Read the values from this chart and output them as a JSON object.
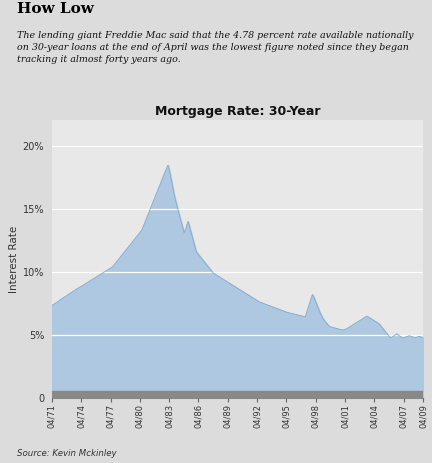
{
  "title": "Mortgage Rate: 30-Year",
  "header": "How Low",
  "subtitle": "The lending giant Freddie Mac said that the 4.78 percent rate available nationally\non 30-year loans at the end of April was the lowest figure noted since they began\ntracking it almost forty years ago.",
  "source": "Source: Kevin Mckinley",
  "ylabel": "Interest Rate",
  "ylim": [
    0,
    22
  ],
  "yticks": [
    0,
    5,
    10,
    15,
    20
  ],
  "ytick_labels": [
    "0",
    "5%",
    "10%",
    "15%",
    "20%"
  ],
  "background_color": "#dcdcdc",
  "chart_bg_color": "#e8e8e8",
  "fill_color": "#adc8e0",
  "fill_edge_color": "#88aac8",
  "gray_bar_color": "#888888",
  "xtick_labels": [
    "04/71",
    "04/74",
    "04/77",
    "04/80",
    "04/83",
    "04/86",
    "04/89",
    "04/92",
    "04/95",
    "04/98",
    "04/01",
    "04/04",
    "04/07",
    "04/09"
  ],
  "mortgage_data": [
    7.33,
    7.38,
    7.44,
    7.5,
    7.55,
    7.6,
    7.65,
    7.72,
    7.78,
    7.83,
    7.88,
    7.94,
    7.99,
    8.04,
    8.09,
    8.14,
    8.2,
    8.25,
    8.3,
    8.35,
    8.4,
    8.45,
    8.51,
    8.57,
    8.62,
    8.67,
    8.72,
    8.77,
    8.82,
    8.87,
    8.91,
    8.95,
    9.0,
    9.05,
    9.1,
    9.15,
    9.2,
    9.25,
    9.3,
    9.35,
    9.4,
    9.45,
    9.5,
    9.55,
    9.6,
    9.65,
    9.7,
    9.75,
    9.8,
    9.85,
    9.9,
    9.95,
    10.0,
    10.05,
    10.1,
    10.15,
    10.2,
    10.25,
    10.3,
    10.35,
    10.4,
    10.5,
    10.6,
    10.7,
    10.8,
    10.9,
    11.0,
    11.1,
    11.2,
    11.3,
    11.4,
    11.5,
    11.6,
    11.7,
    11.8,
    11.9,
    12.0,
    12.1,
    12.2,
    12.3,
    12.4,
    12.5,
    12.6,
    12.7,
    12.8,
    12.9,
    13.0,
    13.1,
    13.2,
    13.3,
    13.5,
    13.7,
    13.9,
    14.1,
    14.3,
    14.5,
    14.7,
    14.9,
    15.1,
    15.3,
    15.5,
    15.7,
    15.9,
    16.1,
    16.3,
    16.5,
    16.7,
    16.9,
    17.1,
    17.3,
    17.5,
    17.7,
    17.9,
    18.1,
    18.3,
    18.45,
    18.2,
    17.8,
    17.4,
    17.0,
    16.6,
    16.2,
    15.8,
    15.5,
    15.2,
    14.9,
    14.6,
    14.3,
    14.0,
    13.7,
    13.4,
    13.1,
    13.3,
    13.5,
    13.8,
    14.0,
    13.7,
    13.4,
    13.1,
    12.8,
    12.5,
    12.2,
    11.9,
    11.6,
    11.5,
    11.4,
    11.3,
    11.2,
    11.1,
    11.0,
    10.9,
    10.8,
    10.7,
    10.6,
    10.5,
    10.4,
    10.3,
    10.2,
    10.1,
    10.0,
    9.9,
    9.85,
    9.8,
    9.75,
    9.7,
    9.65,
    9.6,
    9.55,
    9.5,
    9.45,
    9.4,
    9.35,
    9.3,
    9.25,
    9.2,
    9.15,
    9.1,
    9.05,
    9.0,
    8.95,
    8.9,
    8.85,
    8.8,
    8.75,
    8.7,
    8.65,
    8.6,
    8.55,
    8.5,
    8.45,
    8.4,
    8.35,
    8.3,
    8.25,
    8.2,
    8.15,
    8.1,
    8.05,
    8.0,
    7.95,
    7.9,
    7.85,
    7.8,
    7.75,
    7.7,
    7.65,
    7.6,
    7.58,
    7.55,
    7.52,
    7.49,
    7.46,
    7.43,
    7.4,
    7.37,
    7.34,
    7.31,
    7.28,
    7.25,
    7.22,
    7.19,
    7.16,
    7.13,
    7.1,
    7.07,
    7.04,
    7.01,
    6.98,
    6.95,
    6.92,
    6.89,
    6.86,
    6.83,
    6.8,
    6.78,
    6.76,
    6.74,
    6.72,
    6.7,
    6.68,
    6.66,
    6.64,
    6.62,
    6.6,
    6.58,
    6.56,
    6.54,
    6.52,
    6.5,
    6.48,
    6.46,
    6.44,
    6.7,
    6.95,
    7.2,
    7.45,
    7.7,
    7.95,
    8.2,
    8.1,
    7.9,
    7.7,
    7.5,
    7.3,
    7.1,
    6.9,
    6.7,
    6.55,
    6.4,
    6.25,
    6.15,
    6.05,
    5.95,
    5.85,
    5.75,
    5.7,
    5.65,
    5.62,
    5.6,
    5.58,
    5.56,
    5.54,
    5.52,
    5.5,
    5.48,
    5.46,
    5.44,
    5.42,
    5.4,
    5.42,
    5.44,
    5.46,
    5.5,
    5.55,
    5.6,
    5.65,
    5.7,
    5.75,
    5.8,
    5.85,
    5.9,
    5.95,
    6.0,
    6.05,
    6.1,
    6.15,
    6.2,
    6.25,
    6.3,
    6.35,
    6.4,
    6.45,
    6.5,
    6.45,
    6.4,
    6.35,
    6.3,
    6.25,
    6.2,
    6.15,
    6.1,
    6.05,
    6.0,
    5.95,
    5.9,
    5.8,
    5.7,
    5.6,
    5.5,
    5.4,
    5.3,
    5.2,
    5.1,
    5.0,
    4.9,
    4.78,
    4.82,
    4.85,
    4.9,
    4.95,
    5.0,
    5.05,
    5.1,
    5.0,
    4.95,
    4.9,
    4.85,
    4.8,
    4.78,
    4.8,
    4.83,
    4.86,
    4.89,
    4.92,
    4.95,
    4.92,
    4.89,
    4.86,
    4.83,
    4.8,
    4.78,
    4.81,
    4.84,
    4.87,
    4.9,
    4.87,
    4.84,
    4.81,
    4.78
  ]
}
